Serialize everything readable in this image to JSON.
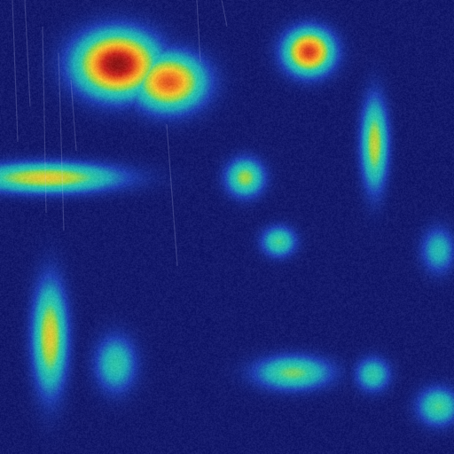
{
  "image": {
    "kind": "attention-heatmap-overlay",
    "colormap": "jet",
    "base_color": "#1b2070",
    "colormap_stops": [
      "#141a6b",
      "#1f3fb0",
      "#1fa5b8",
      "#2fc9a6",
      "#9bd84a",
      "#f2c531",
      "#f07a24",
      "#c9261f",
      "#8f1616"
    ]
  },
  "hotspots": [
    {
      "name": "top-left-peak",
      "intensity": 1.0
    },
    {
      "name": "top-left-shoulder",
      "intensity": 0.8
    },
    {
      "name": "top-right-peak",
      "intensity": 0.85
    },
    {
      "name": "left-horizontal-band",
      "intensity": 0.6
    },
    {
      "name": "right-vertical-blob",
      "intensity": 0.55
    },
    {
      "name": "center-small-blob",
      "intensity": 0.5
    },
    {
      "name": "center-low-blob",
      "intensity": 0.4
    },
    {
      "name": "left-lower-column",
      "intensity": 0.6
    },
    {
      "name": "lower-middle-blob",
      "intensity": 0.35
    },
    {
      "name": "bottom-center-oval",
      "intensity": 0.45
    },
    {
      "name": "bottom-right-small",
      "intensity": 0.35
    },
    {
      "name": "bottom-right-corner",
      "intensity": 0.4
    },
    {
      "name": "right-edge-blob",
      "intensity": 0.3
    }
  ]
}
